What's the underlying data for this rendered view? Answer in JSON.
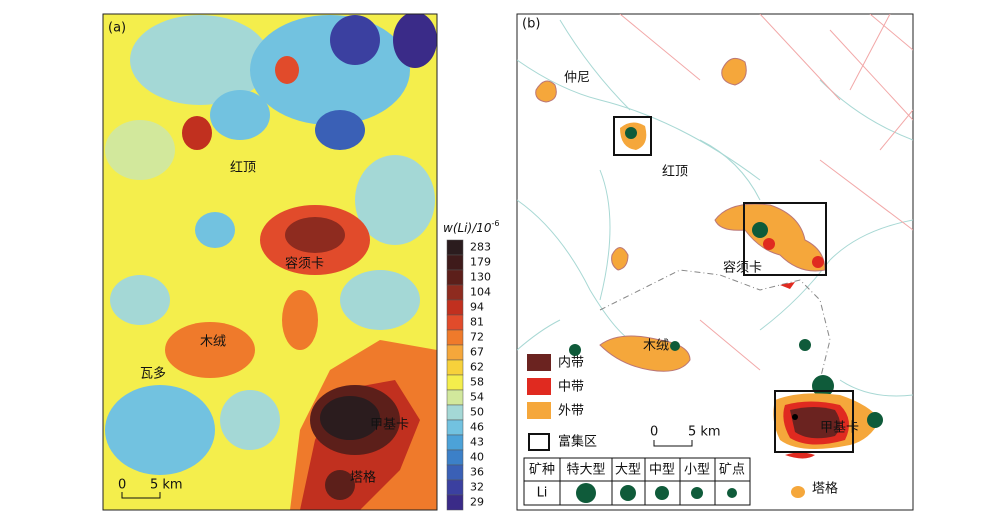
{
  "panel_a": {
    "tag": "(a)",
    "places": [
      "红顶",
      "容须卡",
      "木绒",
      "瓦多",
      "甲基卡",
      "塔格"
    ],
    "scale": [
      "0",
      "5 km"
    ],
    "legend": {
      "title": "w(Li)/10",
      "title_exp": "-6",
      "levels": [
        283,
        179,
        130,
        104,
        94,
        81,
        72,
        67,
        62,
        58,
        54,
        50,
        46,
        43,
        40,
        36,
        32,
        29
      ],
      "colors": [
        "#2b1c1e",
        "#3f1b1b",
        "#5c1f1a",
        "#8e2b1f",
        "#c1301f",
        "#e14b2b",
        "#ef7a2b",
        "#f5a73b",
        "#f7d13b",
        "#f4ee4c",
        "#d2e89c",
        "#a4d8d6",
        "#72c2e0",
        "#4ca2d8",
        "#3c80c8",
        "#3a60b6",
        "#3b40a0",
        "#3a2b88"
      ]
    }
  },
  "panel_b": {
    "tag": "(b)",
    "places": [
      "仲尼",
      "红顶",
      "容须卡",
      "木绒",
      "甲基卡",
      "塔格"
    ],
    "legend": [
      "内带",
      "中带",
      "外带",
      "富集区"
    ],
    "scale": [
      "0",
      "5 km"
    ],
    "table": {
      "header": [
        "矿种",
        "特大型",
        "大型",
        "中型",
        "小型",
        "矿点"
      ],
      "row": [
        "Li"
      ]
    }
  }
}
